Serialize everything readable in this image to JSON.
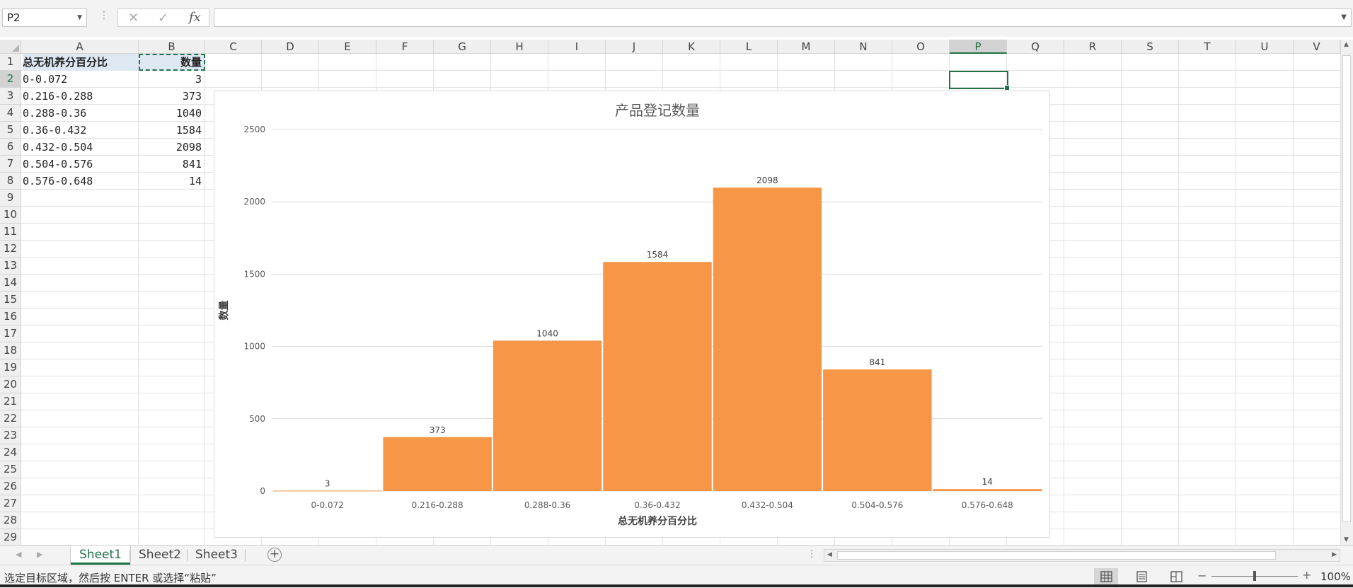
{
  "formula_bar": {
    "name_box": "P2",
    "cancel_icon": "✕",
    "enter_icon": "✓",
    "fx_label": "fx",
    "formula": ""
  },
  "columns": [
    "A",
    "B",
    "C",
    "D",
    "E",
    "F",
    "G",
    "H",
    "I",
    "J",
    "K",
    "L",
    "M",
    "N",
    "O",
    "P",
    "Q",
    "R",
    "S",
    "T",
    "U",
    "V"
  ],
  "active_column": "P",
  "rows": [
    "1",
    "2",
    "3",
    "4",
    "5",
    "6",
    "7",
    "8",
    "9",
    "10",
    "11",
    "12",
    "13",
    "14",
    "15",
    "16",
    "17",
    "18",
    "19",
    "20",
    "21",
    "22",
    "23",
    "24",
    "25",
    "26",
    "27",
    "28",
    "29"
  ],
  "active_row": "2",
  "sheet": {
    "header": {
      "a": "总无机养分百分比",
      "b": "数量"
    },
    "data": [
      {
        "a": "0-0.072",
        "b": "3"
      },
      {
        "a": "0.216-0.288",
        "b": "373"
      },
      {
        "a": "0.288-0.36",
        "b": "1040"
      },
      {
        "a": "0.36-0.432",
        "b": "1584"
      },
      {
        "a": "0.432-0.504",
        "b": "2098"
      },
      {
        "a": "0.504-0.576",
        "b": "841"
      },
      {
        "a": "0.576-0.648",
        "b": "14"
      }
    ]
  },
  "chart_data": {
    "type": "bar",
    "title": "产品登记数量",
    "xlabel": "总无机养分百分比",
    "ylabel": "数量",
    "categories": [
      "0-0.072",
      "0.216-0.288",
      "0.288-0.36",
      "0.36-0.432",
      "0.432-0.504",
      "0.504-0.576",
      "0.576-0.648"
    ],
    "values": [
      3,
      373,
      1040,
      1584,
      2098,
      841,
      14
    ],
    "ylim": [
      0,
      2500
    ],
    "yticks": [
      0,
      500,
      1000,
      1500,
      2000,
      2500
    ],
    "bar_color": "#F79646",
    "grid": true,
    "legend": "none",
    "data_labels": true
  },
  "tabs": [
    {
      "label": "Sheet1",
      "active": true
    },
    {
      "label": "Sheet2",
      "active": false
    },
    {
      "label": "Sheet3",
      "active": false
    }
  ],
  "add_sheet_label": "+",
  "status": {
    "message": "选定目标区域，然后按 ENTER 或选择“粘贴”",
    "zoom": "100%",
    "zoom_minus": "−",
    "zoom_plus": "+"
  },
  "accent": "#217346"
}
